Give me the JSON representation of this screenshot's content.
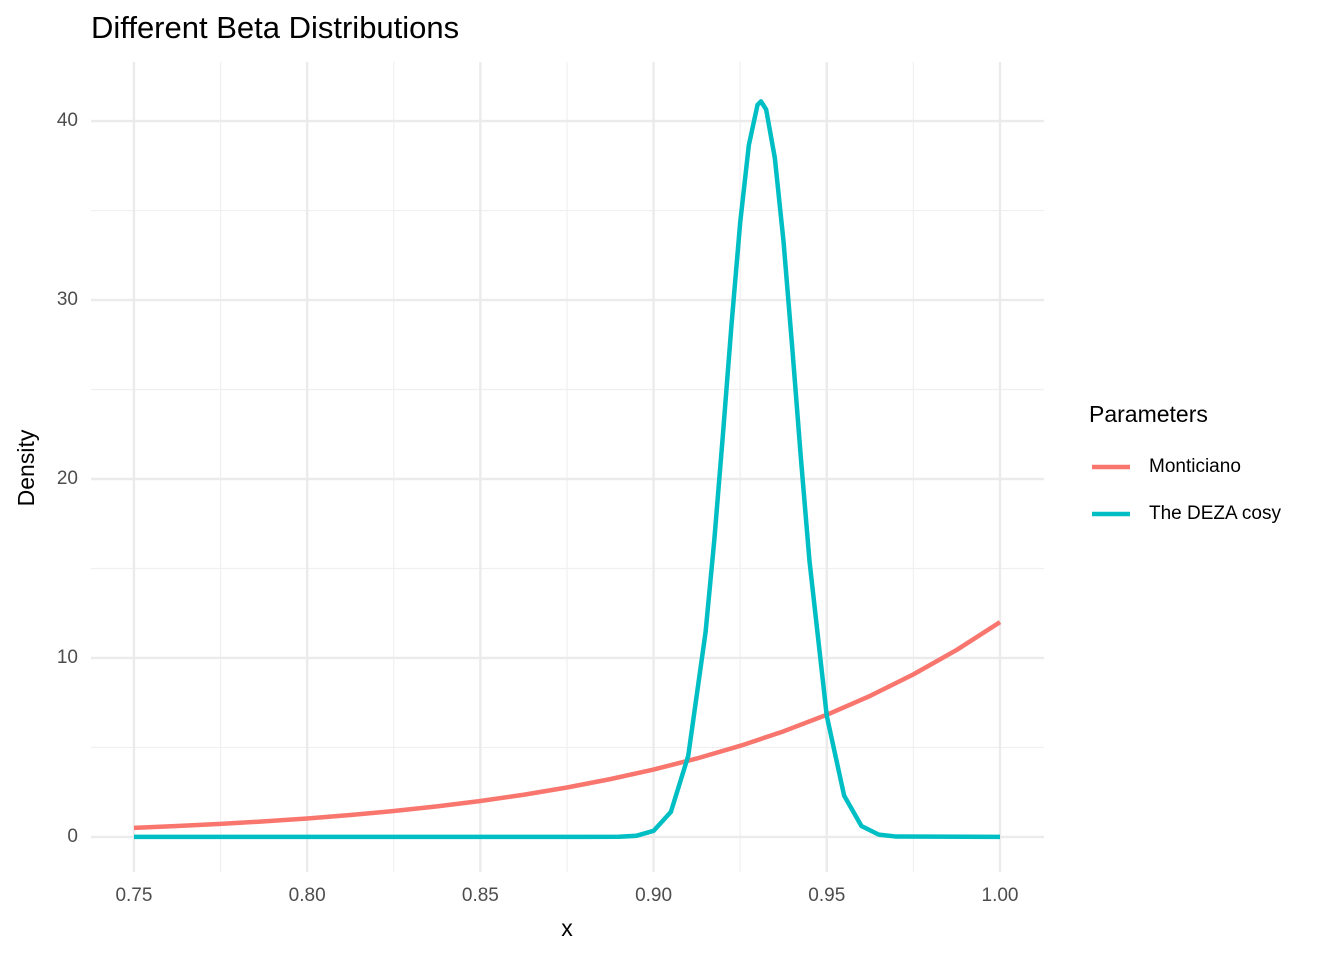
{
  "chart_data": {
    "type": "line",
    "title": "Different Beta Distributions",
    "x_label": "x",
    "y_label": "Density",
    "legend_title": "Parameters",
    "legend_position": "right",
    "grid": true,
    "xlim": [
      0.7376,
      1.0127
    ],
    "ylim": [
      -1.96,
      43.3
    ],
    "xticks": [
      {
        "value": 0.75,
        "label": "0.75"
      },
      {
        "value": 0.8,
        "label": "0.80"
      },
      {
        "value": 0.85,
        "label": "0.85"
      },
      {
        "value": 0.9,
        "label": "0.90"
      },
      {
        "value": 0.95,
        "label": "0.95"
      },
      {
        "value": 1.0,
        "label": "1.00"
      }
    ],
    "yticks": [
      0,
      10,
      20,
      30,
      40
    ],
    "series": [
      {
        "name": "Monticiano",
        "color": "#F8766D",
        "x": [
          0.75,
          0.7625,
          0.775,
          0.7875,
          0.8,
          0.8125,
          0.825,
          0.8375,
          0.85,
          0.8625,
          0.875,
          0.8875,
          0.9,
          0.9125,
          0.925,
          0.9375,
          0.95,
          0.9625,
          0.975,
          0.9875,
          1.0
        ],
        "values": [
          0.507,
          0.608,
          0.727,
          0.867,
          1.031,
          1.223,
          1.446,
          1.707,
          2.008,
          2.358,
          2.762,
          3.229,
          3.766,
          4.383,
          5.09,
          5.9,
          6.826,
          7.881,
          9.083,
          10.449,
          12
        ]
      },
      {
        "name": "The DEZA cosy",
        "color": "#00BFC4",
        "x": [
          0.75,
          0.88,
          0.89,
          0.895,
          0.9,
          0.905,
          0.91,
          0.915,
          0.9175,
          0.92,
          0.9225,
          0.925,
          0.9275,
          0.93,
          0.931,
          0.9325,
          0.935,
          0.9375,
          0.94,
          0.9425,
          0.945,
          0.95,
          0.955,
          0.96,
          0.965,
          0.97,
          1.0
        ],
        "values": [
          0,
          0,
          0.009,
          0.063,
          0.34,
          1.4,
          4.53,
          11.43,
          16.53,
          22.44,
          28.64,
          34.33,
          38.66,
          40.9,
          41.1,
          40.64,
          37.94,
          33.29,
          27.41,
          21.22,
          15.43,
          6.76,
          2.31,
          0.61,
          0.13,
          0.02,
          0
        ]
      }
    ]
  }
}
